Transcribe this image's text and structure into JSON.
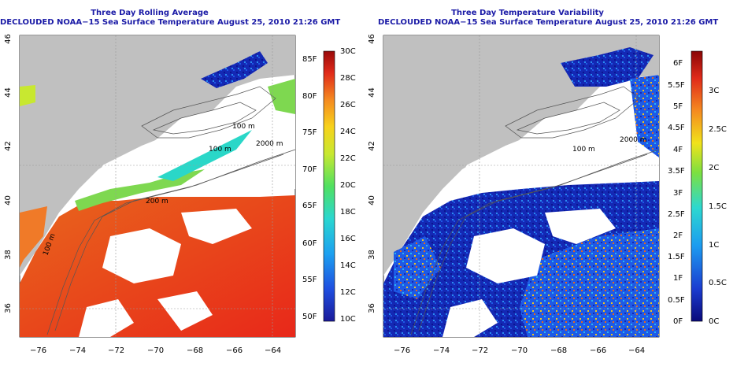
{
  "panels": [
    {
      "title_line1": "Three Day Rolling Average",
      "title_line2": "DECLOUDED NOAA−15 Sea Surface Temperature August 25, 2010 21:26 GMT",
      "x_ticks": [
        "−76",
        "−74",
        "−72",
        "−70",
        "−68",
        "−66",
        "−64"
      ],
      "y_ticks": [
        "36",
        "38",
        "40",
        "42",
        "44",
        "46"
      ],
      "depth_labels": [
        "100 m",
        "100 m",
        "2000 m",
        "200 m",
        "100 m"
      ],
      "colorbar_left": [
        "85F",
        "80F",
        "75F",
        "70F",
        "65F",
        "60F",
        "55F",
        "50F"
      ],
      "colorbar_right": [
        "30C",
        "28C",
        "26C",
        "24C",
        "22C",
        "20C",
        "18C",
        "16C",
        "14C",
        "12C",
        "10C"
      ],
      "colors": {
        "land": "#c0c0c0",
        "cloud": "#ffffff",
        "warm": "#e8341c",
        "cool": "#1e3cc8"
      }
    },
    {
      "title_line1": "Three Day Temperature Variability",
      "title_line2": "DECLOUDED NOAA−15 Sea Surface Temperature August 25, 2010 21:26 GMT",
      "x_ticks": [
        "−76",
        "−74",
        "−72",
        "−70",
        "−68",
        "−66",
        "−64"
      ],
      "y_ticks": [
        "36",
        "38",
        "40",
        "42",
        "44",
        "46"
      ],
      "depth_labels": [
        "100 m",
        "2000 m"
      ],
      "colorbar_left": [
        "6F",
        "5.5F",
        "5F",
        "4.5F",
        "4F",
        "3.5F",
        "3F",
        "2.5F",
        "2F",
        "1.5F",
        "1F",
        "0.5F",
        "0F"
      ],
      "colorbar_right": [
        "3C",
        "2.5C",
        "2C",
        "1.5C",
        "1C",
        "0.5C",
        "0C"
      ],
      "colors": {
        "land": "#c0c0c0",
        "cloud": "#ffffff",
        "low": "#0a148c",
        "mid": "#28a0f0"
      }
    }
  ]
}
